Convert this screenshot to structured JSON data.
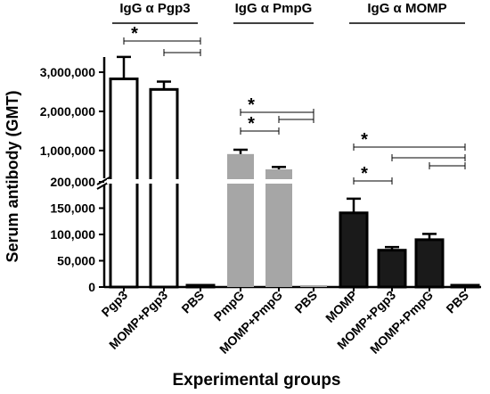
{
  "chart_data": {
    "type": "bar",
    "xlabel": "Experimental groups",
    "ylabel": "Serum antibody (GMT)",
    "y_axis_break": true,
    "ylim_lower": [
      0,
      200000
    ],
    "ylim_upper": [
      200000,
      3000000
    ],
    "y_ticks_lower": [
      "0",
      "50,000",
      "100,000",
      "150,000",
      "200,000"
    ],
    "y_ticks_upper": [
      "1,000,000",
      "2,000,000",
      "3,000,000"
    ],
    "categories": [
      "Pgp3",
      "MOMP+Pgp3",
      "PBS",
      "PmpG",
      "MOMP+PmpG",
      "PBS",
      "MOMP",
      "MOMP+Pgp3",
      "MOMP+PmpG",
      "PBS"
    ],
    "values": [
      2830000,
      2560000,
      0,
      910000,
      520000,
      0,
      141000,
      70000,
      90000,
      0
    ],
    "errors": [
      560000,
      200000,
      0,
      110000,
      60000,
      0,
      27000,
      6000,
      11000,
      0
    ],
    "colors": {
      "white": "#ffffff",
      "gray": "#a6a6a6",
      "black": "#1a1a1a",
      "axis": "#000000"
    },
    "groups": [
      {
        "label": "IgG α Pgp3",
        "bars": [
          0,
          1,
          2
        ],
        "fill": "white"
      },
      {
        "label": "IgG α PmpG",
        "bars": [
          3,
          4,
          5
        ],
        "fill": "gray"
      },
      {
        "label": "IgG α MOMP",
        "bars": [
          6,
          7,
          8,
          9
        ],
        "fill": "black"
      }
    ],
    "comparisons": [
      {
        "from": 0,
        "to": 2,
        "star": "*"
      },
      {
        "from": 1,
        "to": 2,
        "star": ""
      },
      {
        "from": 3,
        "to": 5,
        "star": "*"
      },
      {
        "from": 3,
        "to": 4,
        "star": "*"
      },
      {
        "from": 4,
        "to": 5,
        "star": ""
      },
      {
        "from": 6,
        "to": 9,
        "star": "*"
      },
      {
        "from": 7,
        "to": 9,
        "star": ""
      },
      {
        "from": 6,
        "to": 7,
        "star": "*"
      },
      {
        "from": 8,
        "to": 9,
        "star": ""
      }
    ]
  }
}
